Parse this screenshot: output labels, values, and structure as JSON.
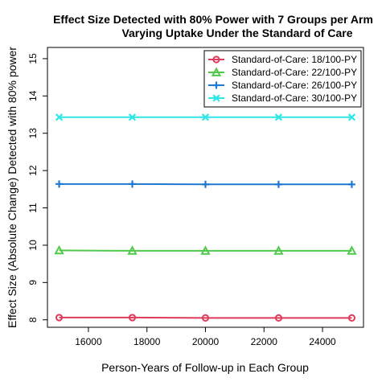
{
  "chart_data": {
    "type": "line",
    "title": "Effect Size Detected with 80% Power with 7 Groups per Arm",
    "subtitle": "Varying Uptake Under the Standard of Care",
    "xlabel": "Person-Years of Follow-up in Each Group",
    "ylabel": "Effect Size (Absolute Change) Detected with 80% power",
    "x": [
      15000,
      17500,
      20000,
      22500,
      25000
    ],
    "xlim": [
      14600,
      25400
    ],
    "ylim": [
      7.8,
      15.3
    ],
    "xticks": [
      16000,
      18000,
      20000,
      22000,
      24000
    ],
    "yticks": [
      8,
      9,
      10,
      11,
      12,
      13,
      14,
      15
    ],
    "xtick_labels": [
      "16000",
      "18000",
      "20000",
      "22000",
      "24000"
    ],
    "ytick_labels": [
      "8",
      "9",
      "10",
      "11",
      "12",
      "13",
      "14",
      "15"
    ],
    "grid": false,
    "legend_position": "top-right",
    "series": [
      {
        "name": "Standard-of-Care: 18/100-PY",
        "color": "#e03a5c",
        "marker": "circle",
        "values": [
          8.06,
          8.06,
          8.05,
          8.05,
          8.05
        ]
      },
      {
        "name": "Standard-of-Care: 22/100-PY",
        "color": "#4fc94a",
        "marker": "triangle",
        "values": [
          9.86,
          9.85,
          9.85,
          9.85,
          9.85
        ]
      },
      {
        "name": "Standard-of-Care: 26/100-PY",
        "color": "#1f78d1",
        "marker": "plus",
        "values": [
          11.64,
          11.64,
          11.63,
          11.63,
          11.63
        ]
      },
      {
        "name": "Standard-of-Care: 30/100-PY",
        "color": "#2ee6e6",
        "marker": "x",
        "values": [
          13.43,
          13.43,
          13.43,
          13.43,
          13.43
        ]
      }
    ]
  }
}
